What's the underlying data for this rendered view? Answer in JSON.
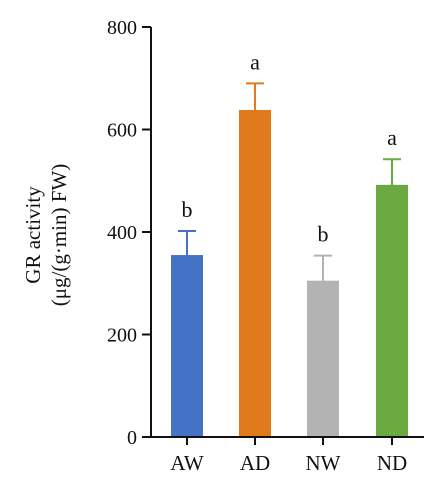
{
  "chart_data": {
    "type": "bar",
    "ylabel_line1": "GR activity",
    "ylabel_line2": "(μg/(g·min) FW)",
    "xlabel": "",
    "ylim": [
      0,
      800
    ],
    "yticks": [
      0,
      200,
      400,
      600,
      800
    ],
    "ytick_labels": [
      "0",
      "200",
      "400",
      "600",
      "800"
    ],
    "categories": [
      "AW",
      "AD",
      "NW",
      "ND"
    ],
    "values": [
      355,
      638,
      305,
      492
    ],
    "errors": [
      47,
      52,
      49,
      50
    ],
    "significance": [
      "b",
      "a",
      "b",
      "a"
    ],
    "colors": [
      "#4472c4",
      "#e07a1c",
      "#b3b3b3",
      "#6aaa40"
    ],
    "grid": false,
    "legend": "none"
  }
}
